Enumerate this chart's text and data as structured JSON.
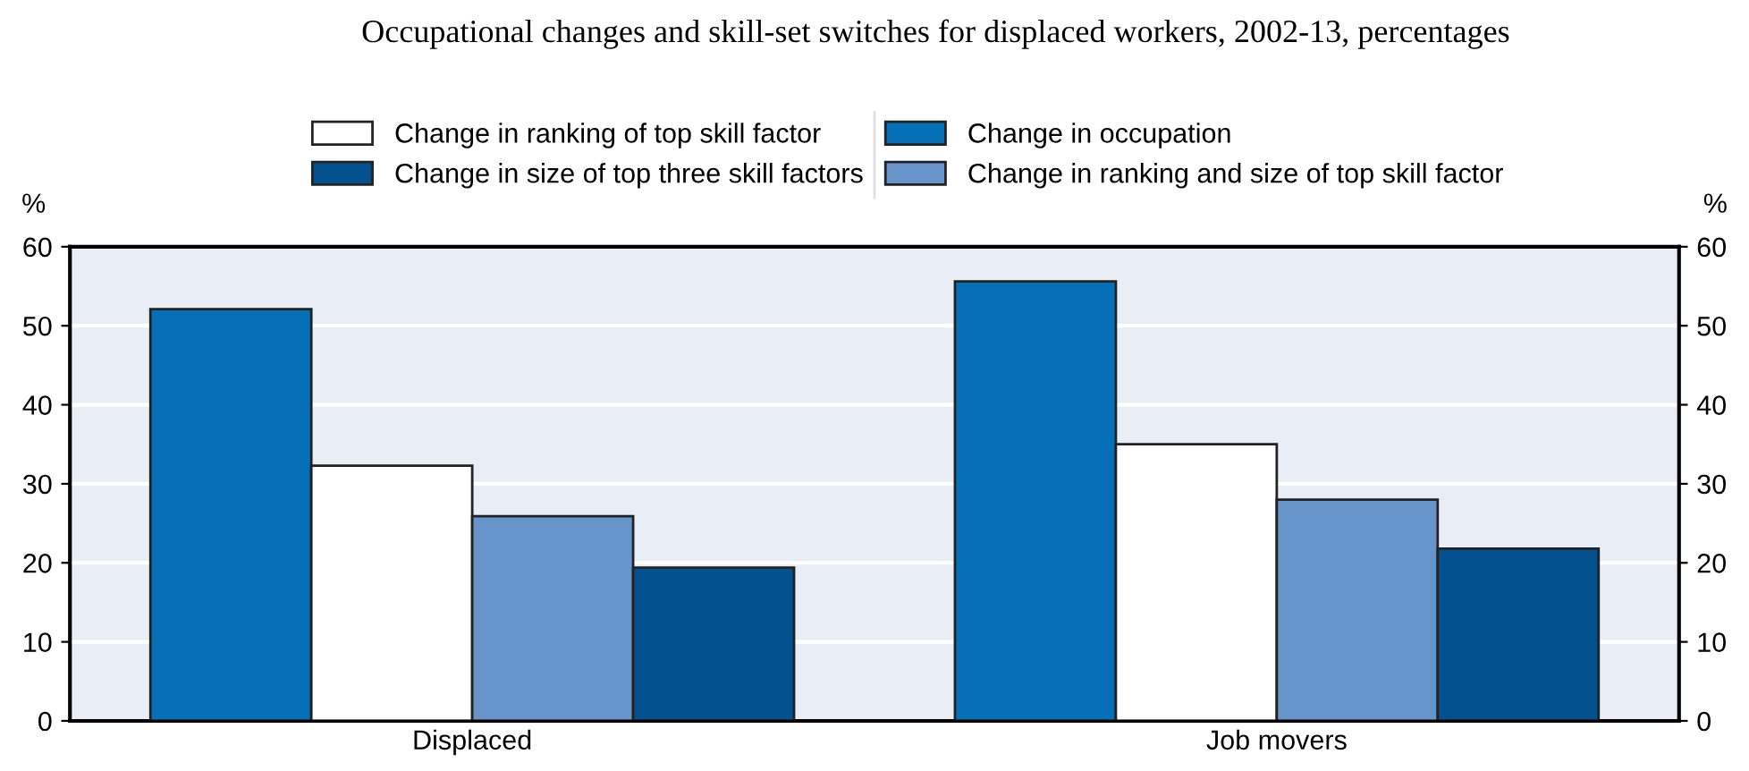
{
  "chart_data": {
    "type": "bar",
    "title": "Occupational changes and skill-set switches for displaced workers, 2002-13, percentages",
    "categories": [
      "Displaced",
      "Job movers"
    ],
    "series": [
      {
        "name": "Change in occupation",
        "color": "#056fb7",
        "values": [
          52.1,
          55.6
        ]
      },
      {
        "name": "Change in ranking of top skill factor",
        "color": "#ffffff",
        "values": [
          32.3,
          35.0
        ]
      },
      {
        "name": "Change in ranking and size of top skill factor",
        "color": "#6894cc",
        "values": [
          25.9,
          28.0
        ]
      },
      {
        "name": "Change in size of top three skill factors",
        "color": "#03518e",
        "values": [
          19.4,
          21.8
        ]
      }
    ],
    "ylabel": "%",
    "y2label": "%",
    "ylim": [
      0,
      60
    ],
    "yticks": [
      0,
      10,
      20,
      30,
      40,
      50,
      60
    ],
    "y2lim": [
      0,
      60
    ],
    "y2ticks": [
      0,
      10,
      20,
      30,
      40,
      50,
      60
    ],
    "grid": "y",
    "legend": "top"
  }
}
